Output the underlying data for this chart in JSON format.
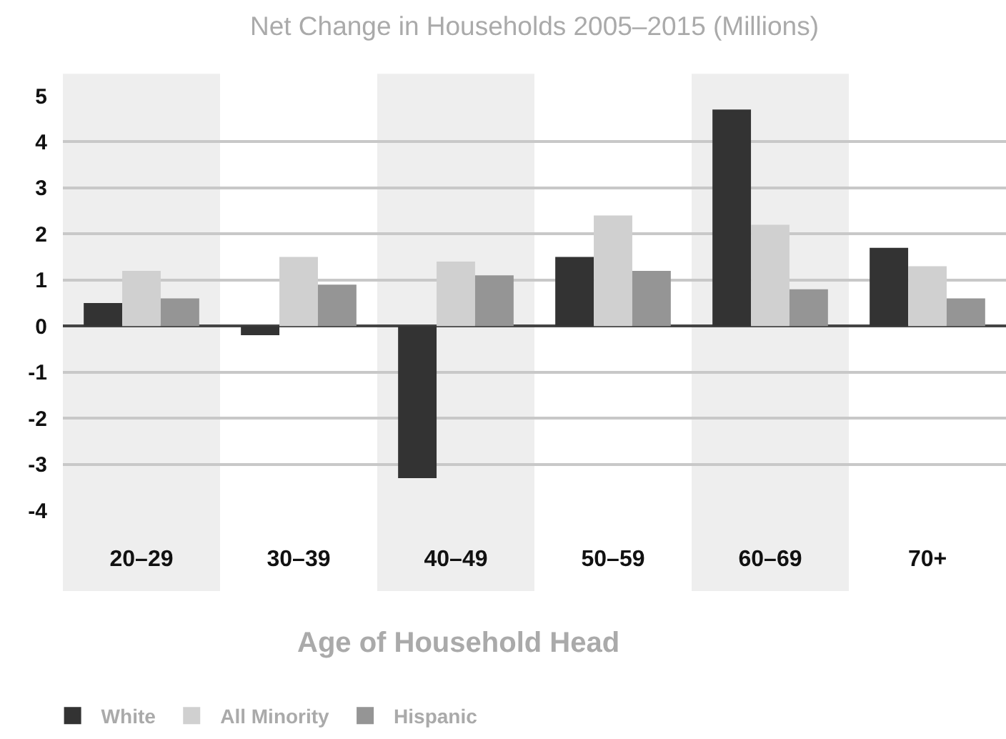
{
  "chart_data": {
    "type": "bar",
    "title": "Net Change in Households 2005–2015 (Millions)",
    "xlabel": "Age of Household Head",
    "categories": [
      "20–29",
      "30–39",
      "40–49",
      "50–59",
      "60–69",
      "70+"
    ],
    "series": [
      {
        "name": "White",
        "color": "#333333",
        "values": [
          0.5,
          -0.2,
          -3.3,
          1.5,
          4.7,
          1.7
        ]
      },
      {
        "name": "All Minority",
        "color": "#d0d0d0",
        "values": [
          1.2,
          1.5,
          1.4,
          2.4,
          2.2,
          1.3
        ]
      },
      {
        "name": "Hispanic",
        "color": "#959595",
        "values": [
          0.6,
          0.9,
          1.1,
          1.2,
          0.8,
          0.6
        ]
      }
    ],
    "ylim": [
      -4,
      5
    ],
    "yticks": [
      -4,
      -3,
      -2,
      -1,
      0,
      1,
      2,
      3,
      4,
      5
    ],
    "grid": "y",
    "legend": "bottom left",
    "bands": [
      {
        "axis": "x",
        "from": "20–29",
        "to": "20–29",
        "color": "#eeeeee"
      },
      {
        "axis": "x",
        "from": "40–49",
        "to": "40–49",
        "color": "#eeeeee"
      },
      {
        "axis": "x",
        "from": "60–69",
        "to": "60–69",
        "color": "#eeeeee"
      }
    ]
  }
}
